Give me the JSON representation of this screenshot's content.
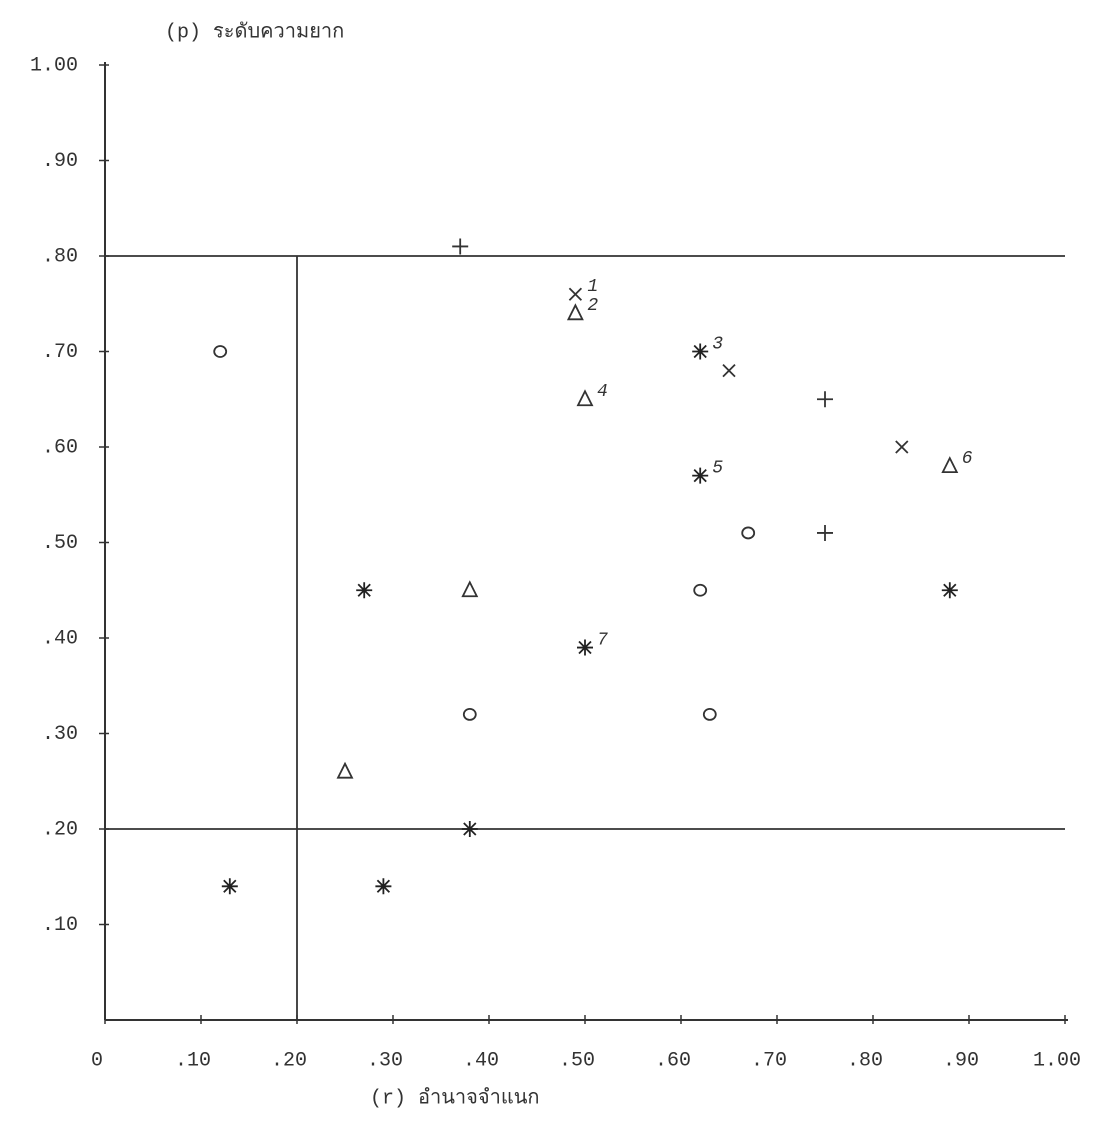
{
  "chart_data": {
    "type": "scatter",
    "title": "(p)  ระดับความยาก",
    "xlabel": "(r)   อำนาจจำแนก",
    "xlim": [
      0,
      1.0
    ],
    "ylim": [
      0,
      1.0
    ],
    "xticks": [
      0,
      {
        "value": 0.1,
        "label": ".10"
      },
      {
        "value": 0.2,
        "label": ".20"
      },
      {
        "value": 0.3,
        "label": ".30"
      },
      {
        "value": 0.4,
        "label": ".40"
      },
      {
        "value": 0.5,
        "label": ".50"
      },
      {
        "value": 0.6,
        "label": ".60"
      },
      {
        "value": 0.7,
        "label": ".70"
      },
      {
        "value": 0.8,
        "label": ".80"
      },
      {
        "value": 0.9,
        "label": ".90"
      },
      {
        "value": 1.0,
        "label": "1.00"
      }
    ],
    "yticks": [
      {
        "value": 0.1,
        "label": ".10"
      },
      {
        "value": 0.2,
        "label": ".20"
      },
      {
        "value": 0.3,
        "label": ".30"
      },
      {
        "value": 0.4,
        "label": ".40"
      },
      {
        "value": 0.5,
        "label": ".50"
      },
      {
        "value": 0.6,
        "label": ".60"
      },
      {
        "value": 0.7,
        "label": ".70"
      },
      {
        "value": 0.8,
        "label": ".80"
      },
      {
        "value": 0.9,
        "label": ".90"
      },
      {
        "value": 1.0,
        "label": "1.00"
      }
    ],
    "hlines": [
      0.8,
      0.2
    ],
    "vlines": [
      0.2
    ],
    "series": [
      {
        "marker": "circle",
        "color": "#333333",
        "x": [
          0.12,
          0.38,
          0.62,
          0.63,
          0.67
        ],
        "values": [
          0.7,
          0.32,
          0.45,
          0.32,
          0.51
        ]
      },
      {
        "marker": "asterisk",
        "color": "#222222",
        "x": [
          0.13,
          0.29,
          0.38,
          0.27,
          0.62,
          0.62,
          0.5,
          0.88
        ],
        "values": [
          0.14,
          0.14,
          0.2,
          0.45,
          0.7,
          0.57,
          0.39,
          0.45
        ]
      },
      {
        "marker": "triangle",
        "color": "#333333",
        "x": [
          0.25,
          0.38,
          0.49,
          0.5,
          0.88
        ],
        "values": [
          0.26,
          0.45,
          0.74,
          0.65,
          0.58
        ]
      },
      {
        "marker": "cross",
        "color": "#333333",
        "x": [
          0.49,
          0.65,
          0.83
        ],
        "values": [
          0.76,
          0.68,
          0.6
        ]
      },
      {
        "marker": "plus",
        "color": "#333333",
        "x": [
          0.37,
          0.75,
          0.75
        ],
        "values": [
          0.81,
          0.65,
          0.51
        ]
      }
    ],
    "annotations": [
      {
        "text": "1",
        "x": 0.49,
        "y": 0.76
      },
      {
        "text": "2",
        "x": 0.49,
        "y": 0.74
      },
      {
        "text": "3",
        "x": 0.62,
        "y": 0.7
      },
      {
        "text": "4",
        "x": 0.5,
        "y": 0.65
      },
      {
        "text": "5",
        "x": 0.62,
        "y": 0.57
      },
      {
        "text": "6",
        "x": 0.88,
        "y": 0.58
      },
      {
        "text": "7",
        "x": 0.5,
        "y": 0.39
      }
    ]
  }
}
